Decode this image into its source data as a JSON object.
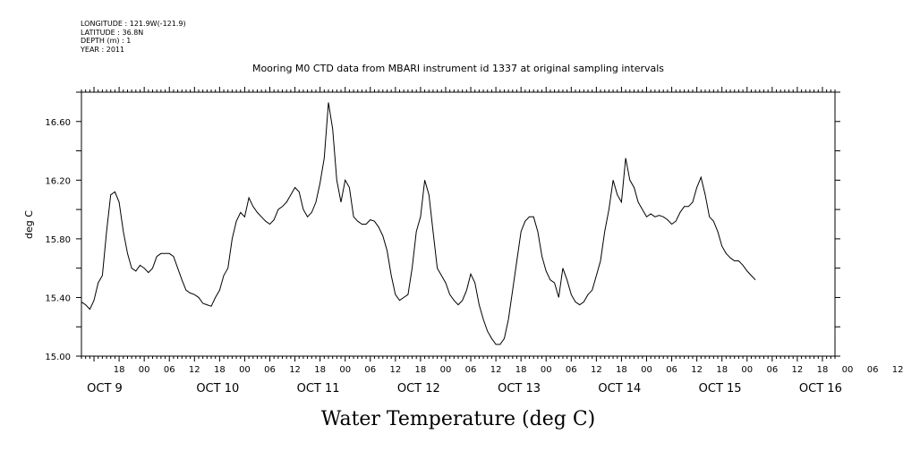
{
  "metadata": {
    "longitude": "LONGITUDE : 121.9W(-121.9)",
    "latitude": "LATITUDE : 36.8N",
    "depth": "DEPTH (m) : 1",
    "year": "YEAR : 2011"
  },
  "chart_data": {
    "type": "line",
    "title": "Mooring M0 CTD data from MBARI instrument id 1337 at original sampling intervals",
    "ylabel": "deg C",
    "caption": "Water Temperature (deg C)",
    "ylim": [
      15.0,
      16.8
    ],
    "yticks": [
      "15.00",
      "15.40",
      "15.80",
      "16.20",
      "16.60"
    ],
    "xlim_hours": [
      9,
      189
    ],
    "hour_ticks": [
      "18",
      "00",
      "06",
      "12",
      "18",
      "00",
      "06",
      "12",
      "18",
      "00",
      "06",
      "12",
      "18",
      "00",
      "06",
      "12",
      "18",
      "00",
      "06",
      "12",
      "18",
      "00",
      "06",
      "12",
      "18",
      "00",
      "06",
      "12",
      "18",
      "00",
      "06",
      "12"
    ],
    "date_labels": [
      "OCT  9",
      "OCT 10",
      "OCT 11",
      "OCT 12",
      "OCT 13",
      "OCT 14",
      "OCT 15",
      "OCT 16"
    ],
    "series": [
      {
        "values_note": "hours since 00 OCT 9 paired with temperature (deg C)",
        "points": [
          [
            9,
            15.37
          ],
          [
            10,
            15.35
          ],
          [
            11,
            15.32
          ],
          [
            12,
            15.38
          ],
          [
            13,
            15.5
          ],
          [
            14,
            15.55
          ],
          [
            15,
            15.85
          ],
          [
            16,
            16.1
          ],
          [
            17,
            16.12
          ],
          [
            18,
            16.05
          ],
          [
            19,
            15.85
          ],
          [
            20,
            15.7
          ],
          [
            21,
            15.6
          ],
          [
            22,
            15.58
          ],
          [
            23,
            15.62
          ],
          [
            24,
            15.6
          ],
          [
            25,
            15.57
          ],
          [
            26,
            15.6
          ],
          [
            27,
            15.68
          ],
          [
            28,
            15.7
          ],
          [
            29,
            15.7
          ],
          [
            30,
            15.7
          ],
          [
            31,
            15.68
          ],
          [
            32,
            15.6
          ],
          [
            33,
            15.52
          ],
          [
            34,
            15.45
          ],
          [
            35,
            15.43
          ],
          [
            36,
            15.42
          ],
          [
            37,
            15.4
          ],
          [
            38,
            15.36
          ],
          [
            39,
            15.35
          ],
          [
            40,
            15.34
          ],
          [
            41,
            15.4
          ],
          [
            42,
            15.45
          ],
          [
            43,
            15.55
          ],
          [
            44,
            15.6
          ],
          [
            45,
            15.8
          ],
          [
            46,
            15.92
          ],
          [
            47,
            15.98
          ],
          [
            48,
            15.95
          ],
          [
            49,
            16.08
          ],
          [
            50,
            16.02
          ],
          [
            51,
            15.98
          ],
          [
            52,
            15.95
          ],
          [
            53,
            15.92
          ],
          [
            54,
            15.9
          ],
          [
            55,
            15.93
          ],
          [
            56,
            16.0
          ],
          [
            57,
            16.02
          ],
          [
            58,
            16.05
          ],
          [
            59,
            16.1
          ],
          [
            60,
            16.15
          ],
          [
            61,
            16.12
          ],
          [
            62,
            16.0
          ],
          [
            63,
            15.95
          ],
          [
            64,
            15.98
          ],
          [
            65,
            16.05
          ],
          [
            66,
            16.18
          ],
          [
            67,
            16.35
          ],
          [
            68,
            16.73
          ],
          [
            69,
            16.55
          ],
          [
            70,
            16.2
          ],
          [
            71,
            16.05
          ],
          [
            72,
            16.2
          ],
          [
            73,
            16.15
          ],
          [
            74,
            15.95
          ],
          [
            75,
            15.92
          ],
          [
            76,
            15.9
          ],
          [
            77,
            15.9
          ],
          [
            78,
            15.93
          ],
          [
            79,
            15.92
          ],
          [
            80,
            15.88
          ],
          [
            81,
            15.82
          ],
          [
            82,
            15.72
          ],
          [
            83,
            15.55
          ],
          [
            84,
            15.42
          ],
          [
            85,
            15.38
          ],
          [
            86,
            15.4
          ],
          [
            87,
            15.42
          ],
          [
            88,
            15.6
          ],
          [
            89,
            15.85
          ],
          [
            90,
            15.95
          ],
          [
            91,
            16.2
          ],
          [
            92,
            16.1
          ],
          [
            93,
            15.85
          ],
          [
            94,
            15.6
          ],
          [
            95,
            15.55
          ],
          [
            96,
            15.5
          ],
          [
            97,
            15.42
          ],
          [
            98,
            15.38
          ],
          [
            99,
            15.35
          ],
          [
            100,
            15.38
          ],
          [
            101,
            15.45
          ],
          [
            102,
            15.56
          ],
          [
            103,
            15.5
          ],
          [
            104,
            15.35
          ],
          [
            105,
            15.25
          ],
          [
            106,
            15.17
          ],
          [
            107,
            15.12
          ],
          [
            108,
            15.08
          ],
          [
            109,
            15.08
          ],
          [
            110,
            15.12
          ],
          [
            111,
            15.25
          ],
          [
            112,
            15.45
          ],
          [
            113,
            15.65
          ],
          [
            114,
            15.85
          ],
          [
            115,
            15.92
          ],
          [
            116,
            15.95
          ],
          [
            117,
            15.95
          ],
          [
            118,
            15.85
          ],
          [
            119,
            15.68
          ],
          [
            120,
            15.58
          ],
          [
            121,
            15.52
          ],
          [
            122,
            15.5
          ],
          [
            123,
            15.4
          ],
          [
            124,
            15.6
          ],
          [
            125,
            15.52
          ],
          [
            126,
            15.42
          ],
          [
            127,
            15.37
          ],
          [
            128,
            15.35
          ],
          [
            129,
            15.37
          ],
          [
            130,
            15.42
          ],
          [
            131,
            15.45
          ],
          [
            132,
            15.55
          ],
          [
            133,
            15.65
          ],
          [
            134,
            15.85
          ],
          [
            135,
            16.0
          ],
          [
            136,
            16.2
          ],
          [
            137,
            16.1
          ],
          [
            138,
            16.05
          ],
          [
            139,
            16.35
          ],
          [
            140,
            16.2
          ],
          [
            141,
            16.15
          ],
          [
            142,
            16.05
          ],
          [
            143,
            16.0
          ],
          [
            144,
            15.95
          ],
          [
            145,
            15.97
          ],
          [
            146,
            15.95
          ],
          [
            147,
            15.96
          ],
          [
            148,
            15.95
          ],
          [
            149,
            15.93
          ],
          [
            150,
            15.9
          ],
          [
            151,
            15.92
          ],
          [
            152,
            15.98
          ],
          [
            153,
            16.02
          ],
          [
            154,
            16.02
          ],
          [
            155,
            16.05
          ],
          [
            156,
            16.15
          ],
          [
            157,
            16.22
          ],
          [
            158,
            16.1
          ],
          [
            159,
            15.95
          ],
          [
            160,
            15.92
          ],
          [
            161,
            15.85
          ],
          [
            162,
            15.75
          ],
          [
            163,
            15.7
          ],
          [
            164,
            15.67
          ],
          [
            165,
            15.65
          ],
          [
            166,
            15.65
          ],
          [
            167,
            15.62
          ],
          [
            168,
            15.58
          ],
          [
            169,
            15.55
          ],
          [
            170,
            15.52
          ]
        ]
      }
    ],
    "line_color": "#000000"
  }
}
